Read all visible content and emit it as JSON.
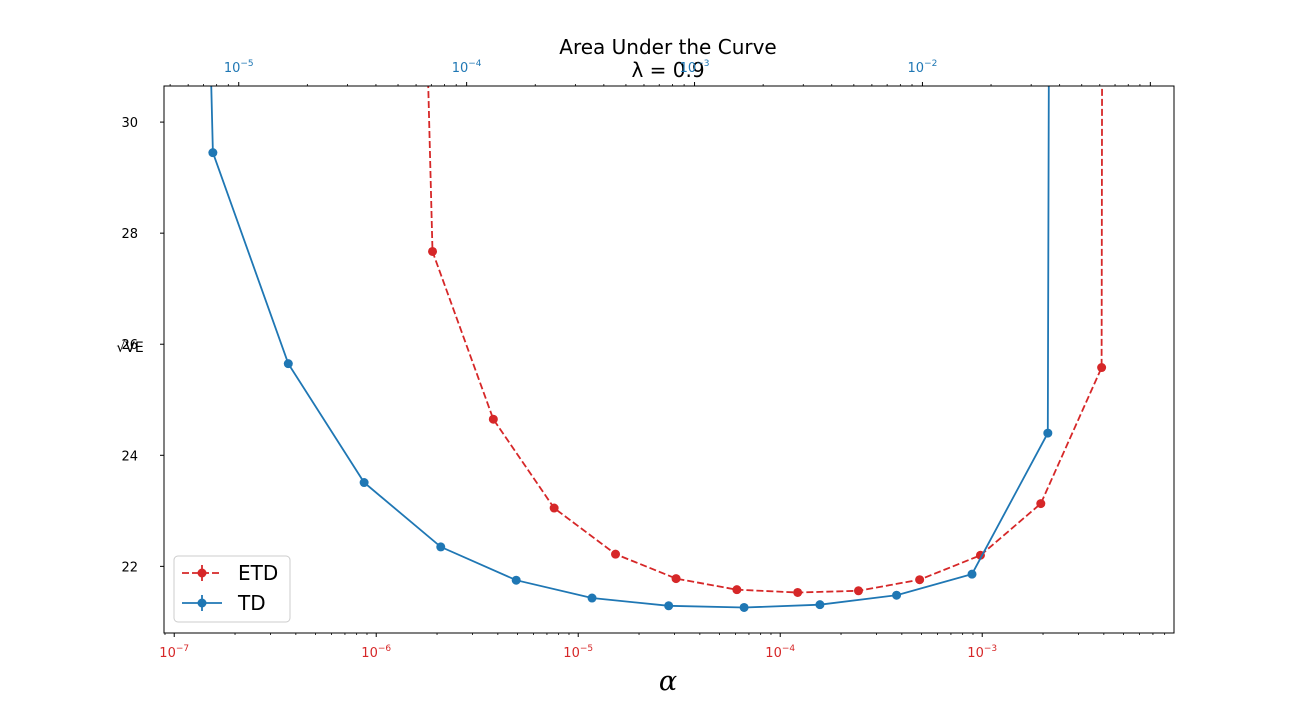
{
  "chart_data": {
    "type": "line",
    "title": "Area Under the Curve",
    "subtitle": "λ = 0.9",
    "xlabel": "α",
    "ylabel": "√VE",
    "xscale": "log",
    "ylim": [
      20.8,
      30.65
    ],
    "yticks": [
      {
        "value": 22,
        "label": "22"
      },
      {
        "value": 24,
        "label": "24"
      },
      {
        "value": 26,
        "label": "26"
      },
      {
        "value": 28,
        "label": "28"
      },
      {
        "value": 30,
        "label": "30"
      }
    ],
    "bottom_axis": {
      "color": "#d62728",
      "scale": "log",
      "xlim": [
        8.9e-08,
        0.0089
      ],
      "ticks": [
        {
          "exp": -7,
          "label": "10−7"
        },
        {
          "exp": -6,
          "label": "10−6"
        },
        {
          "exp": -5,
          "label": "10−5"
        },
        {
          "exp": -4,
          "label": "10−4"
        },
        {
          "exp": -3,
          "label": "10−3"
        }
      ]
    },
    "top_axis": {
      "color": "#1f77b4",
      "scale": "log",
      "xlim": [
        4.7e-06,
        0.127
      ],
      "ticks": [
        {
          "exp": -5,
          "label": "10−5"
        },
        {
          "exp": -4,
          "label": "10−4"
        },
        {
          "exp": -3,
          "label": "10−3"
        },
        {
          "exp": -2,
          "label": "10−2"
        }
      ]
    },
    "legend_position": "lower-left",
    "series": [
      {
        "name": "ETD",
        "axis": "bottom",
        "color": "#d62728",
        "linestyle": "dashed",
        "x": [
          1.9e-06,
          3.8e-06,
          7.6e-06,
          1.53e-05,
          3.05e-05,
          6.1e-05,
          0.000122,
          0.000244,
          0.00049,
          0.00098,
          0.00195,
          0.0039
        ],
        "y": [
          27.67,
          24.65,
          23.05,
          22.22,
          21.78,
          21.58,
          21.53,
          21.56,
          21.76,
          22.2,
          23.13,
          25.58
        ],
        "offscale": [
          {
            "x": 1.32e-06,
            "y": 50
          },
          {
            "x": 0.004,
            "y": 50
          }
        ]
      },
      {
        "name": "TD",
        "axis": "top",
        "color": "#1f77b4",
        "linestyle": "solid",
        "x": [
          7.7e-06,
          1.65e-05,
          3.55e-05,
          7.7e-05,
          0.000165,
          0.000355,
          0.00077,
          0.00165,
          0.00355,
          0.0077,
          0.0165,
          0.0355
        ],
        "y": [
          29.45,
          25.65,
          23.51,
          22.35,
          21.75,
          21.43,
          21.29,
          21.26,
          21.31,
          21.48,
          21.86,
          24.4
        ],
        "offscale": [
          {
            "x": 5.8e-06,
            "y": 50
          },
          {
            "x": 0.037,
            "y": 50
          }
        ]
      }
    ]
  }
}
